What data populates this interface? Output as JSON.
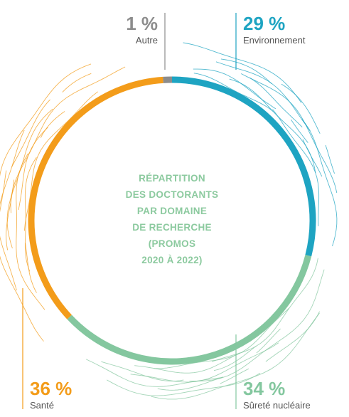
{
  "chart_data": {
    "type": "pie",
    "title_lines": [
      "RÉPARTITION",
      "DES DOCTORANTS",
      "PAR DOMAINE",
      "DE RECHERCHE",
      "(PROMOS",
      "2020 À 2022)"
    ],
    "slices": [
      {
        "name": "Environnement",
        "value": 29,
        "value_label": "29 %",
        "color": "#1ea4c2"
      },
      {
        "name": "Sûreté nucléaire",
        "value": 34,
        "value_label": "34 %",
        "color": "#84c79f"
      },
      {
        "name": "Santé",
        "value": 36,
        "value_label": "36 %",
        "color": "#f39c1a"
      },
      {
        "name": "Autre",
        "value": 1,
        "value_label": "1 %",
        "color": "#8c8c8c"
      }
    ]
  }
}
